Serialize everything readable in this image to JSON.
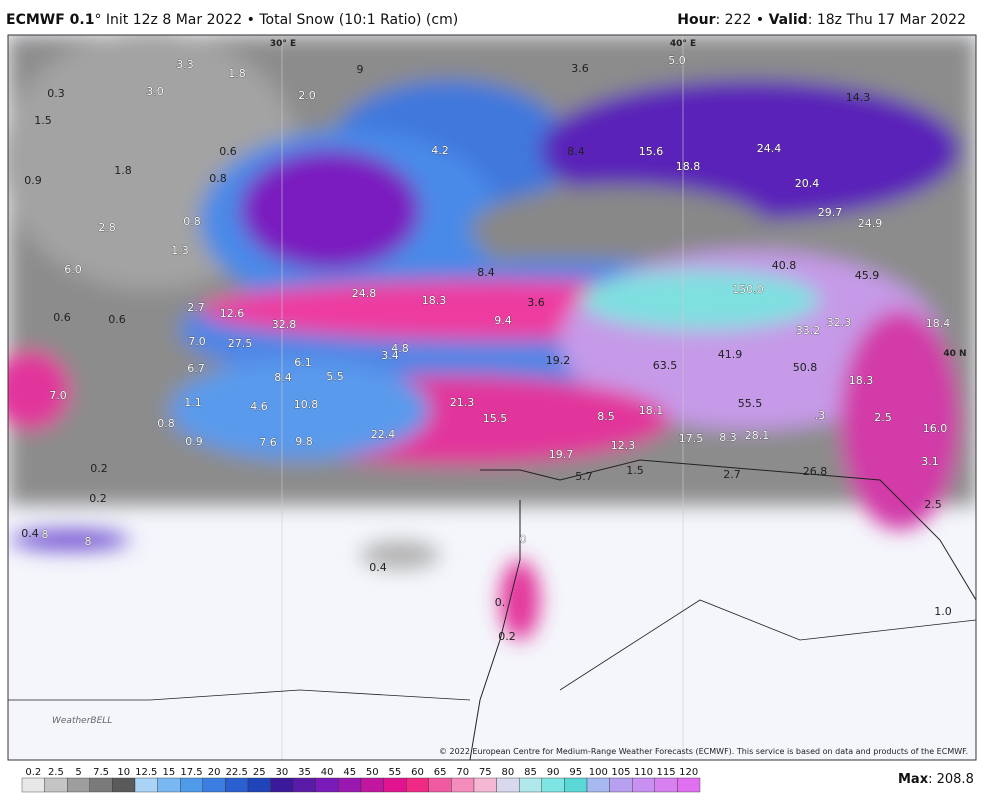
{
  "header": {
    "model": "ECMWF 0.1",
    "run_info": "° Init 12z 8 Mar 2022 • Total Snow (10:1 Ratio) (cm)",
    "hour_label": "Hour",
    "hour_value": ": 222 • ",
    "valid_label": "Valid",
    "valid_value": ": 18z Thu 17 Mar 2022"
  },
  "max": {
    "label": "Max",
    "value": ": 208.8"
  },
  "copyright": "© 2022 European Centre for Medium-Range Weather Forecasts (ECMWF). This service is based on data and products of the ECMWF.",
  "logo": "WeatherBELL",
  "grid_labels": [
    "30° E",
    "40° E",
    "40 N"
  ],
  "legend": {
    "ticks": [
      "0.2",
      "2.5",
      "5",
      "7.5",
      "10",
      "12.5",
      "15",
      "17.5",
      "20",
      "22.5",
      "25",
      "30",
      "35",
      "40",
      "45",
      "50",
      "55",
      "60",
      "65",
      "70",
      "75",
      "80",
      "85",
      "90",
      "95",
      "100",
      "105",
      "110",
      "115",
      "120"
    ],
    "colors": [
      "#e8e8e8",
      "#c4c4c4",
      "#9e9e9e",
      "#7a7a7a",
      "#5a5a5a",
      "#a9d4f6",
      "#7ab8f2",
      "#4f9bea",
      "#3b7de0",
      "#2a5fd0",
      "#1f44b8",
      "#3a1a9a",
      "#5a1ca8",
      "#7a1ab8",
      "#9a18b0",
      "#c016a0",
      "#e0148e",
      "#f02a84",
      "#f05aa0",
      "#f48cbc",
      "#f4b8d4",
      "#d8d8ee",
      "#b0e8ec",
      "#7ee4e4",
      "#5ad8d8",
      "#a8b8f0",
      "#b8a0f0",
      "#c890f0",
      "#d880f0",
      "#e070f0"
    ]
  },
  "map_labels": [
    "0.3",
    "1.5",
    "3.0",
    "3.3",
    "1.8",
    "2.0",
    "9",
    "3.6",
    "5.0",
    "14.3",
    "0.6",
    "0.8",
    "1.8",
    "0.9",
    "4.2",
    "8.4",
    "15.6",
    "18.8",
    "24.4",
    "20.4",
    "29.7",
    "24.9",
    "2.8",
    "0.8",
    "1.3",
    "6.0",
    "8.4",
    "40.8",
    "45.9",
    "24.8",
    "18.3",
    "3.6",
    "150.0",
    "2.7",
    "12.6",
    "32.8",
    "9.4",
    "33.2",
    "32.3",
    "18.4",
    "0.6",
    "0.6",
    "27.5",
    "7.0",
    "4.8",
    "3.4",
    "6.1",
    "19.2",
    "63.5",
    "41.9",
    "50.8",
    "6.7",
    "8.4",
    "5.5",
    "18.3",
    "7.0",
    "1.1",
    "10.8",
    "21.3",
    "4.6",
    "55.5",
    "15.5",
    "8.5",
    "18.1",
    ".3",
    "2.5",
    "16.0",
    "0.8",
    "22.4",
    "28.1",
    "17.5",
    "8.3",
    "12.3",
    "0.9",
    "7.6",
    "9.8",
    "19.7",
    "1.5",
    "3.1",
    "26.8",
    "2.7",
    "5.7",
    "0.2",
    "0.2",
    "2.5",
    "0",
    "1.0",
    "0.4",
    "0.",
    "0.2",
    "0.4",
    "8",
    "8"
  ]
}
